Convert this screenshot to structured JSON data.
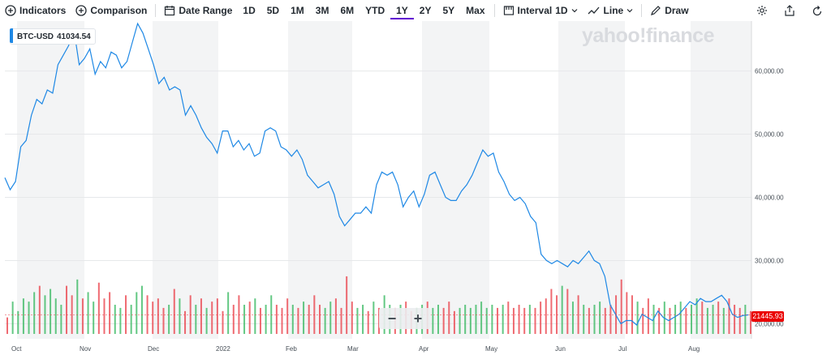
{
  "toolbar": {
    "indicators": "Indicators",
    "comparison": "Comparison",
    "date_range": "Date Range",
    "ranges": [
      "1D",
      "5D",
      "1M",
      "3M",
      "6M",
      "YTD",
      "1Y",
      "2Y",
      "5Y",
      "Max"
    ],
    "active_range": "1Y",
    "interval_label": "Interval",
    "interval_value": "1D",
    "chart_type": "Line",
    "draw": "Draw"
  },
  "brand": {
    "wordmark": "yahoo!finance"
  },
  "legend": {
    "symbol": "BTC-USD",
    "value": "41034.54"
  },
  "zoom": {
    "out": "−",
    "in": "+"
  },
  "price_tag": "21445.93",
  "colors": {
    "line": "#1e88e5",
    "up": "#2fb55a",
    "down": "#ea3943",
    "accent": "#6001d2"
  },
  "chart_data": {
    "type": "line",
    "y_ticks": [
      "60,000.00",
      "50,000.00",
      "40,000.00",
      "30,000.00",
      "20,000.00"
    ],
    "x_labels": [
      "Oct",
      "Nov",
      "Dec",
      "2022",
      "Feb",
      "Mar",
      "Apr",
      "May",
      "Jun",
      "Jul",
      "Aug"
    ],
    "ylim": [
      18000,
      67000
    ],
    "series": [
      {
        "values": [
          43100,
          41200,
          42500,
          48000,
          49000,
          53000,
          55500,
          54800,
          57000,
          56500,
          61000,
          62500,
          64000,
          66500,
          61000,
          62000,
          63500,
          59500,
          61500,
          60500,
          63000,
          62500,
          60500,
          61500,
          64500,
          67500,
          66000,
          63500,
          61000,
          58000,
          59000,
          57000,
          57500,
          57000,
          53000,
          54500,
          53000,
          51000,
          49500,
          48500,
          47000,
          50500,
          50500,
          48000,
          49000,
          47500,
          48500,
          46500,
          47000,
          50500,
          51000,
          50500,
          48000,
          47500,
          46500,
          47500,
          46000,
          43500,
          42500,
          41500,
          42000,
          42500,
          40500,
          37000,
          35500,
          36500,
          37500,
          37500,
          38500,
          37500,
          42000,
          44000,
          43500,
          44000,
          42000,
          38500,
          40000,
          41000,
          38500,
          40500,
          43500,
          44000,
          42000,
          40000,
          39500,
          39500,
          41000,
          42000,
          43500,
          45500,
          47500,
          46500,
          47000,
          44000,
          42500,
          40500,
          39500,
          40000,
          39000,
          37000,
          36000,
          31000,
          30000,
          29500,
          30000,
          29500,
          29000,
          30000,
          29500,
          30500,
          31500,
          30000,
          29500,
          27500,
          23000,
          21500,
          20000,
          20500,
          20500,
          19800,
          21500,
          21000,
          20500,
          22000,
          21000,
          20500,
          21000,
          21500,
          22500,
          23500,
          23000,
          24000,
          23500,
          23500,
          24000,
          24500,
          23500,
          21500,
          21000,
          21300,
          21400
        ]
      }
    ],
    "volume": [
      [
        21000,
        "d"
      ],
      [
        23500,
        "u"
      ],
      [
        22000,
        "u"
      ],
      [
        24000,
        "u"
      ],
      [
        23500,
        "u"
      ],
      [
        25000,
        "u"
      ],
      [
        26000,
        "d"
      ],
      [
        24500,
        "u"
      ],
      [
        25500,
        "u"
      ],
      [
        24000,
        "u"
      ],
      [
        23000,
        "u"
      ],
      [
        26000,
        "d"
      ],
      [
        24500,
        "d"
      ],
      [
        27000,
        "u"
      ],
      [
        24000,
        "d"
      ],
      [
        25000,
        "u"
      ],
      [
        23500,
        "u"
      ],
      [
        26500,
        "d"
      ],
      [
        24000,
        "d"
      ],
      [
        25000,
        "d"
      ],
      [
        23000,
        "u"
      ],
      [
        22500,
        "u"
      ],
      [
        24500,
        "d"
      ],
      [
        23000,
        "u"
      ],
      [
        25000,
        "u"
      ],
      [
        26000,
        "u"
      ],
      [
        24500,
        "d"
      ],
      [
        23500,
        "d"
      ],
      [
        24000,
        "d"
      ],
      [
        22500,
        "d"
      ],
      [
        23000,
        "u"
      ],
      [
        25500,
        "d"
      ],
      [
        24000,
        "u"
      ],
      [
        22000,
        "d"
      ],
      [
        24500,
        "d"
      ],
      [
        23000,
        "u"
      ],
      [
        24000,
        "d"
      ],
      [
        22500,
        "u"
      ],
      [
        23500,
        "d"
      ],
      [
        24000,
        "d"
      ],
      [
        22000,
        "d"
      ],
      [
        25000,
        "u"
      ],
      [
        23000,
        "d"
      ],
      [
        24500,
        "d"
      ],
      [
        23000,
        "u"
      ],
      [
        23500,
        "d"
      ],
      [
        24000,
        "u"
      ],
      [
        22500,
        "d"
      ],
      [
        23000,
        "u"
      ],
      [
        24500,
        "u"
      ],
      [
        23000,
        "d"
      ],
      [
        22500,
        "d"
      ],
      [
        24000,
        "d"
      ],
      [
        23000,
        "u"
      ],
      [
        22500,
        "d"
      ],
      [
        23500,
        "u"
      ],
      [
        23000,
        "d"
      ],
      [
        24500,
        "d"
      ],
      [
        23000,
        "d"
      ],
      [
        22500,
        "u"
      ],
      [
        23500,
        "u"
      ],
      [
        24000,
        "d"
      ],
      [
        22500,
        "d"
      ],
      [
        27500,
        "d"
      ],
      [
        23500,
        "d"
      ],
      [
        22500,
        "u"
      ],
      [
        23000,
        "u"
      ],
      [
        22000,
        "d"
      ],
      [
        23500,
        "u"
      ],
      [
        22500,
        "d"
      ],
      [
        24500,
        "u"
      ],
      [
        23000,
        "u"
      ],
      [
        22500,
        "d"
      ],
      [
        23000,
        "u"
      ],
      [
        23500,
        "d"
      ],
      [
        22000,
        "d"
      ],
      [
        22500,
        "u"
      ],
      [
        23000,
        "u"
      ],
      [
        23500,
        "d"
      ],
      [
        22500,
        "u"
      ],
      [
        23000,
        "u"
      ],
      [
        22500,
        "d"
      ],
      [
        23500,
        "d"
      ],
      [
        22000,
        "d"
      ],
      [
        22500,
        "u"
      ],
      [
        23000,
        "u"
      ],
      [
        22500,
        "u"
      ],
      [
        23000,
        "u"
      ],
      [
        23500,
        "u"
      ],
      [
        22500,
        "u"
      ],
      [
        23000,
        "u"
      ],
      [
        22500,
        "d"
      ],
      [
        23000,
        "u"
      ],
      [
        23500,
        "d"
      ],
      [
        22500,
        "d"
      ],
      [
        23000,
        "d"
      ],
      [
        22500,
        "d"
      ],
      [
        23000,
        "u"
      ],
      [
        22500,
        "d"
      ],
      [
        23500,
        "d"
      ],
      [
        24000,
        "d"
      ],
      [
        25500,
        "d"
      ],
      [
        24500,
        "d"
      ],
      [
        26000,
        "u"
      ],
      [
        25500,
        "d"
      ],
      [
        23500,
        "u"
      ],
      [
        24500,
        "d"
      ],
      [
        23000,
        "u"
      ],
      [
        22500,
        "d"
      ],
      [
        23000,
        "u"
      ],
      [
        23500,
        "u"
      ],
      [
        22500,
        "d"
      ],
      [
        23000,
        "d"
      ],
      [
        24500,
        "d"
      ],
      [
        27000,
        "d"
      ],
      [
        25000,
        "d"
      ],
      [
        24500,
        "d"
      ],
      [
        23500,
        "u"
      ],
      [
        22500,
        "d"
      ],
      [
        24000,
        "d"
      ],
      [
        23000,
        "u"
      ],
      [
        22500,
        "d"
      ],
      [
        23500,
        "u"
      ],
      [
        22500,
        "d"
      ],
      [
        23000,
        "u"
      ],
      [
        23500,
        "u"
      ],
      [
        22500,
        "d"
      ],
      [
        23000,
        "u"
      ],
      [
        24000,
        "u"
      ],
      [
        23500,
        "d"
      ],
      [
        22500,
        "u"
      ],
      [
        23000,
        "u"
      ],
      [
        23500,
        "d"
      ],
      [
        22500,
        "u"
      ],
      [
        24000,
        "d"
      ],
      [
        23000,
        "d"
      ],
      [
        22500,
        "d"
      ],
      [
        23000,
        "u"
      ],
      [
        22000,
        "d"
      ]
    ]
  }
}
